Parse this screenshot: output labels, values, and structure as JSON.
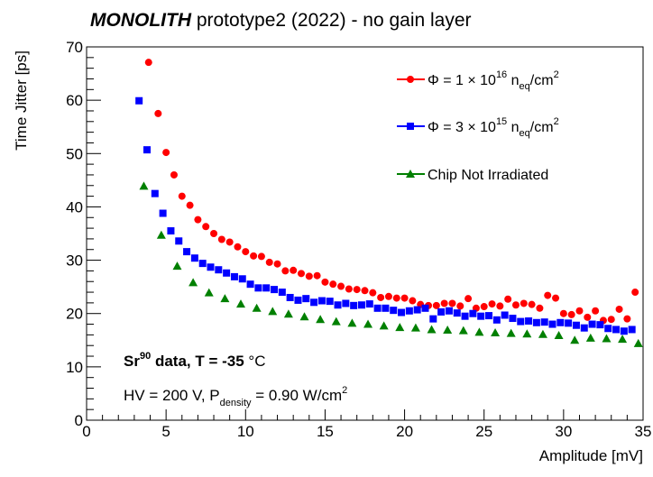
{
  "chart_data": {
    "type": "scatter",
    "title_bold": "MONOLITH",
    "title_rest": "prototype2 (2022) - no gain layer",
    "xlabel": "Amplitude [mV]",
    "ylabel": "Time Jitter [ps]",
    "xlim": [
      0,
      35
    ],
    "ylim": [
      0,
      70
    ],
    "xticks": [
      0,
      5,
      10,
      15,
      20,
      25,
      30,
      35
    ],
    "yticks": [
      0,
      10,
      20,
      30,
      40,
      50,
      60,
      70
    ],
    "grid": false,
    "legend_position": "top-right",
    "legend": [
      {
        "sym": "Φ = 1 × 10",
        "sup": "16",
        "unit": " n",
        "sub": "eq",
        "tail": "/cm",
        "sup2": "2"
      },
      {
        "sym": "Φ = 3 × 10",
        "sup": "15",
        "unit": " n",
        "sub": "eq",
        "tail": "/cm",
        "sup2": "2"
      },
      {
        "text": "Chip Not Irradiated"
      }
    ],
    "annotations": {
      "line1_a": "Sr",
      "line1_sup": "90",
      "line1_b": " data, T = -35 ",
      "line1_deg": "°C",
      "line2_a": "HV = 200 V, P",
      "line2_sub": "density",
      "line2_b": " = 0.90 W/cm",
      "line2_sup": "2"
    },
    "series": [
      {
        "color": "#ff0000",
        "marker": "circle",
        "x": [
          3.9,
          4.5,
          5.0,
          5.5,
          6.0,
          6.5,
          7.0,
          7.5,
          8.0,
          8.5,
          9.0,
          9.5,
          10.0,
          10.5,
          11.0,
          11.5,
          12.0,
          12.5,
          13.0,
          13.5,
          14.0,
          14.5,
          15.0,
          15.5,
          16.0,
          16.5,
          17.0,
          17.5,
          18.0,
          18.5,
          19.0,
          19.5,
          20.0,
          20.5,
          21.0,
          21.5,
          22.0,
          22.5,
          23.0,
          23.5,
          24.0,
          24.5,
          25.0,
          25.5,
          26.0,
          26.5,
          27.0,
          27.5,
          28.0,
          28.5,
          29.0,
          29.5,
          30.0,
          30.5,
          31.0,
          31.5,
          32.0,
          32.5,
          33.0,
          33.5,
          34.0,
          34.5
        ],
        "y": [
          67.1,
          57.5,
          50.2,
          46.0,
          42.0,
          40.3,
          37.6,
          36.3,
          35.0,
          33.9,
          33.4,
          32.5,
          31.6,
          30.8,
          30.7,
          29.6,
          29.3,
          28.0,
          28.1,
          27.5,
          27.0,
          27.1,
          25.9,
          25.5,
          25.1,
          24.6,
          24.5,
          24.3,
          23.9,
          23.0,
          23.2,
          22.9,
          22.9,
          22.4,
          21.7,
          21.5,
          21.5,
          21.9,
          21.9,
          21.4,
          22.8,
          21.0,
          21.3,
          21.8,
          21.4,
          22.7,
          21.6,
          21.9,
          21.7,
          21.0,
          23.4,
          22.9,
          20.0,
          19.8,
          20.5,
          19.3,
          20.5,
          18.7,
          18.9,
          20.8,
          19.0,
          24.0
        ]
      },
      {
        "color": "#0000ff",
        "marker": "square",
        "x": [
          3.3,
          3.8,
          4.3,
          4.8,
          5.3,
          5.8,
          6.3,
          6.8,
          7.3,
          7.8,
          8.3,
          8.8,
          9.3,
          9.8,
          10.3,
          10.8,
          11.3,
          11.8,
          12.3,
          12.8,
          13.3,
          13.8,
          14.3,
          14.8,
          15.3,
          15.8,
          16.3,
          16.8,
          17.3,
          17.8,
          18.3,
          18.8,
          19.3,
          19.8,
          20.3,
          20.8,
          21.3,
          21.8,
          22.3,
          22.8,
          23.3,
          23.8,
          24.3,
          24.8,
          25.3,
          25.8,
          26.3,
          26.8,
          27.3,
          27.8,
          28.3,
          28.8,
          29.3,
          29.8,
          30.3,
          30.8,
          31.3,
          31.8,
          32.3,
          32.8,
          33.3,
          33.8,
          34.3
        ],
        "y": [
          59.9,
          50.7,
          42.5,
          38.8,
          35.5,
          33.6,
          31.6,
          30.4,
          29.4,
          28.7,
          28.2,
          27.6,
          26.9,
          26.5,
          25.5,
          24.8,
          24.8,
          24.5,
          24.0,
          23.0,
          22.5,
          22.8,
          22.1,
          22.4,
          22.3,
          21.6,
          21.9,
          21.5,
          21.6,
          21.8,
          21.0,
          21.0,
          20.6,
          20.2,
          20.5,
          20.7,
          21.0,
          19.0,
          20.3,
          20.5,
          20.1,
          19.5,
          20.0,
          19.5,
          19.6,
          18.8,
          19.7,
          19.1,
          18.5,
          18.6,
          18.3,
          18.4,
          18.0,
          18.3,
          18.2,
          17.8,
          17.3,
          18.0,
          17.9,
          17.2,
          17.0,
          16.7,
          17.0
        ]
      },
      {
        "color": "#008000",
        "marker": "triangle",
        "x": [
          3.6,
          4.7,
          5.7,
          6.7,
          7.7,
          8.7,
          9.7,
          10.7,
          11.7,
          12.7,
          13.7,
          14.7,
          15.7,
          16.7,
          17.7,
          18.7,
          19.7,
          20.7,
          21.7,
          22.7,
          23.7,
          24.7,
          25.7,
          26.7,
          27.7,
          28.7,
          29.7,
          30.7,
          31.7,
          32.7,
          33.7,
          34.7
        ],
        "y": [
          43.9,
          34.7,
          28.9,
          25.8,
          23.9,
          22.8,
          21.8,
          21.0,
          20.4,
          19.9,
          19.4,
          18.9,
          18.5,
          18.2,
          18.0,
          17.7,
          17.4,
          17.3,
          17.0,
          16.9,
          16.8,
          16.5,
          16.4,
          16.3,
          16.2,
          16.1,
          15.9,
          15.0,
          15.4,
          15.3,
          15.2,
          14.4
        ]
      }
    ]
  }
}
